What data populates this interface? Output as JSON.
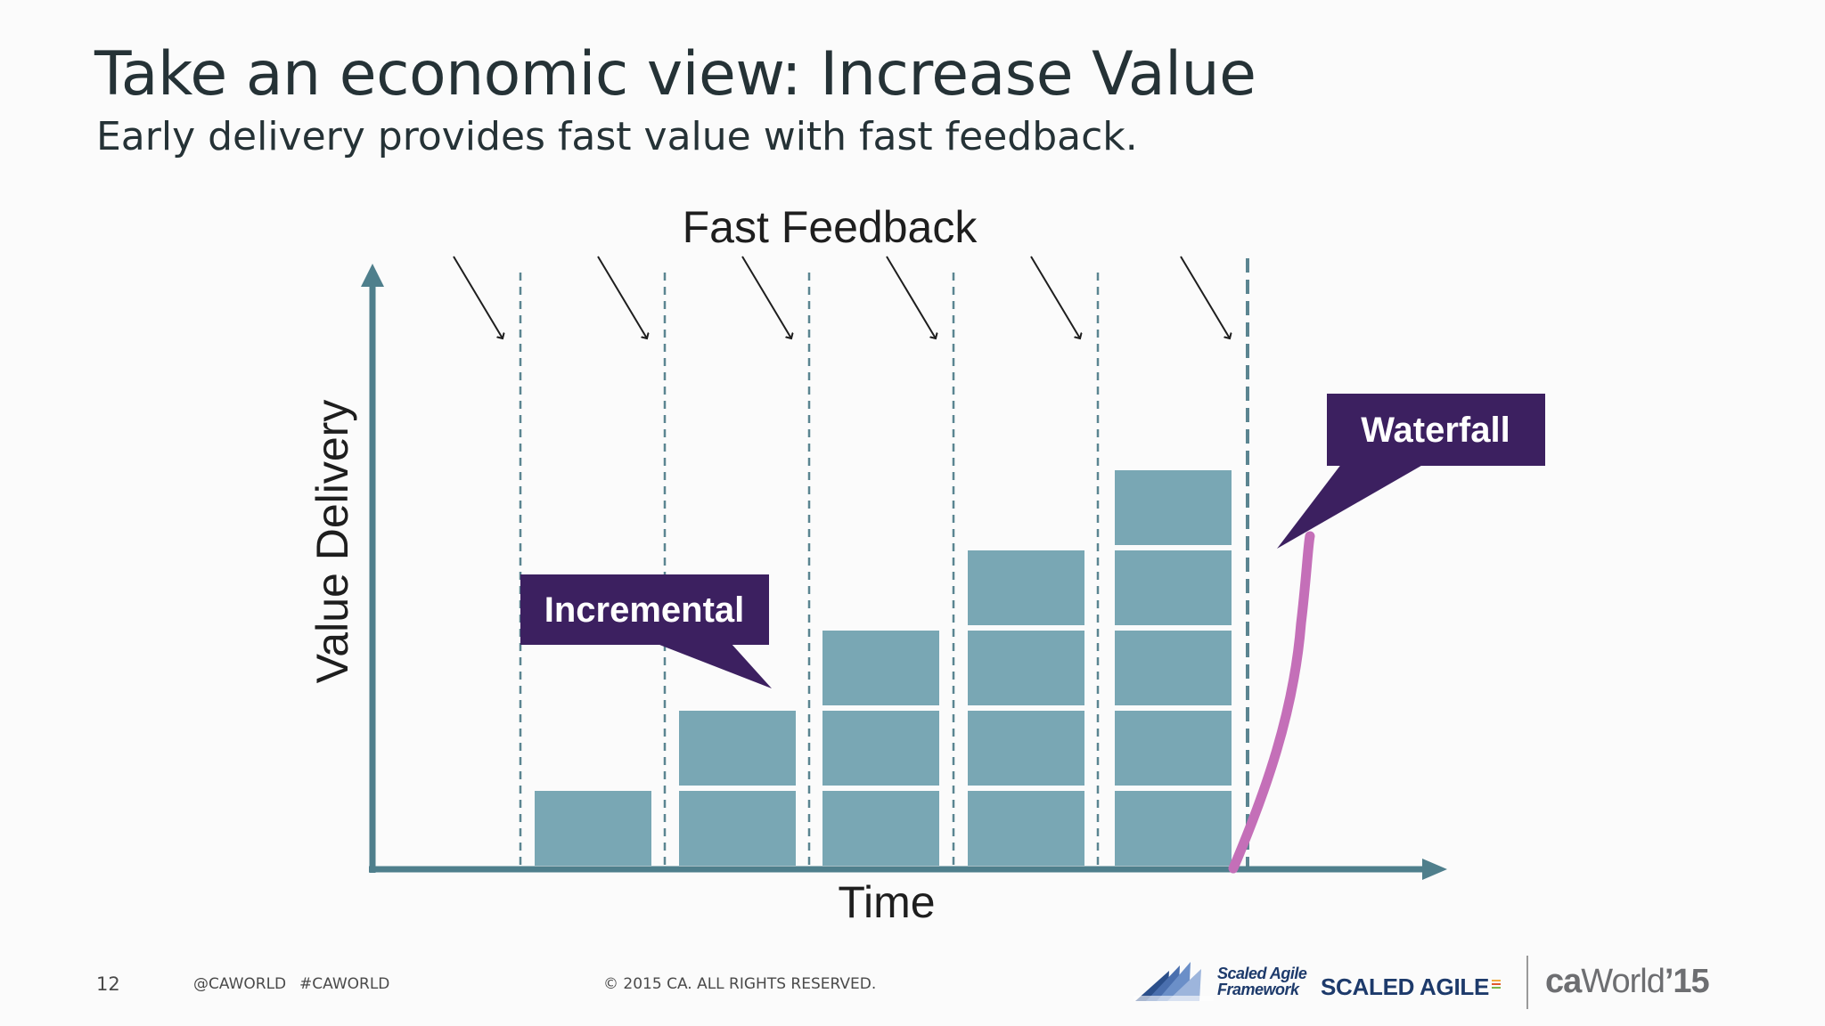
{
  "slide": {
    "title": "Take an economic view: Increase Value",
    "subtitle": "Early delivery provides fast value with fast feedback."
  },
  "diagram": {
    "top_label": "Fast Feedback",
    "y_axis_label": "Value Delivery",
    "x_axis_label": "Time",
    "incremental_label": "Incremental",
    "waterfall_label": "Waterfall",
    "increment_stack_heights": [
      1,
      2,
      3,
      4,
      5
    ],
    "colors": {
      "axis": "#4f7f8c",
      "block": "#79a7b4",
      "callout": "#3c2060",
      "waterfall_curve": "#c46fb8",
      "dashed_line": "#5b8591",
      "text": "#1e1e1e"
    }
  },
  "footer": {
    "page_number": "12",
    "handle": "@CAWORLD",
    "hashtag": "#CAWORLD",
    "copyright": "© 2015 CA. ALL RIGHTS RESERVED.",
    "saf_logo_line1": "Scaled Agile",
    "saf_logo_line2": "Framework",
    "scaled_agile": "SCALED AGILE",
    "caworld_ca": "ca",
    "caworld_world": "World",
    "caworld_year": "’15"
  }
}
